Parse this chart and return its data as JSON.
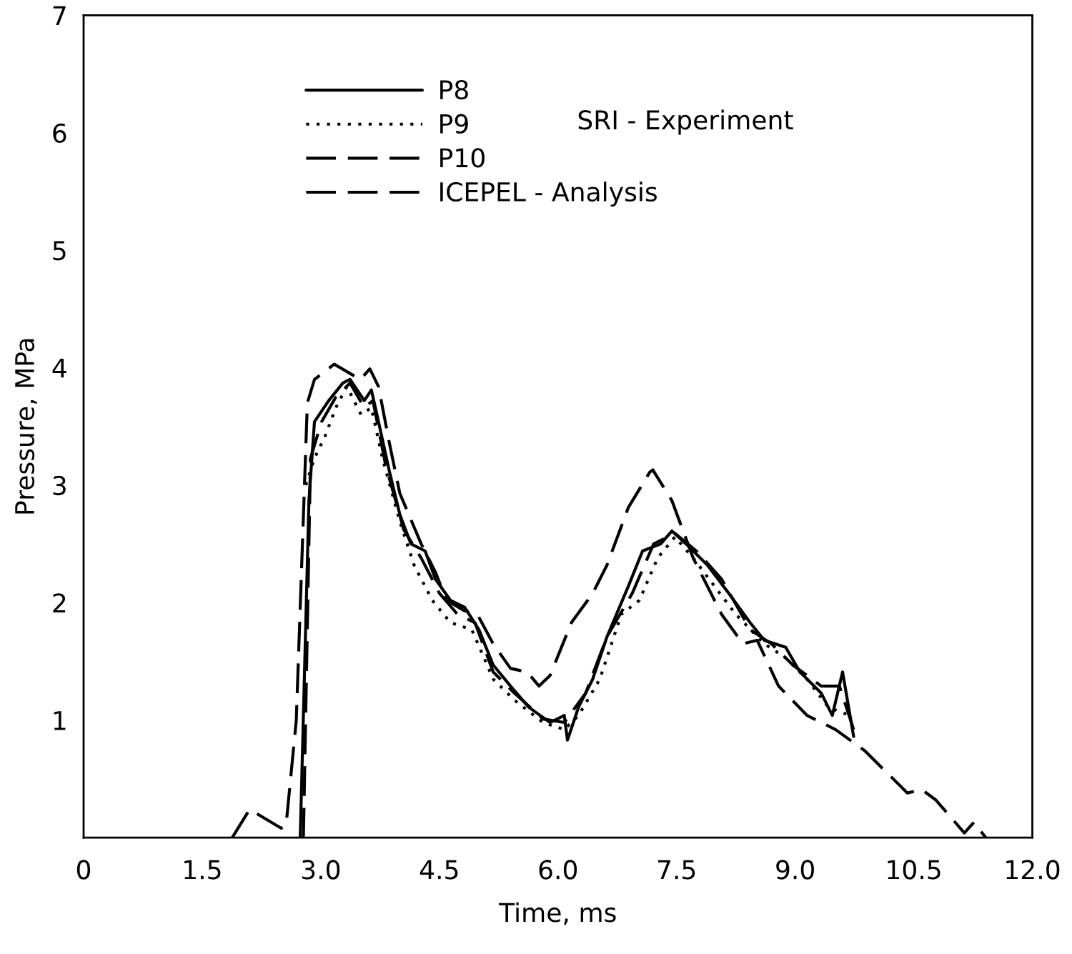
{
  "chart_data": {
    "type": "line",
    "xlabel": "Time, ms",
    "ylabel": "Pressure, MPa",
    "xlim": [
      0,
      12
    ],
    "ylim": [
      0,
      7
    ],
    "xticks": [
      {
        "value": 0,
        "label": "0"
      },
      1.5,
      {
        "value": 3,
        "label": "3.0"
      },
      4.5,
      {
        "value": 6,
        "label": "6.0"
      },
      7.5,
      {
        "value": 9,
        "label": "9.0"
      },
      10.5,
      {
        "value": 12,
        "label": "12.0"
      }
    ],
    "yticks": [
      1,
      2,
      3,
      4,
      5,
      6,
      7
    ],
    "grid": false,
    "legend": "top",
    "annotations": [
      "SRI - Experiment"
    ],
    "series": [
      {
        "name": "P8",
        "color": "#000000",
        "line_style": "solid",
        "x": [
          2.74,
          2.85,
          2.92,
          3.1,
          3.28,
          3.37,
          3.55,
          3.64,
          3.73,
          3.87,
          4.0,
          4.14,
          4.32,
          4.45,
          4.64,
          4.82,
          5.0,
          5.18,
          5.4,
          5.63,
          5.9,
          6.08,
          6.12,
          6.26,
          6.44,
          6.62,
          6.89,
          7.07,
          7.3,
          7.44,
          7.62,
          7.89,
          8.16,
          8.43,
          8.61,
          8.88,
          9.06,
          9.33,
          9.47,
          9.6,
          9.74
        ],
        "values": [
          0,
          2.87,
          3.54,
          3.72,
          3.87,
          3.9,
          3.72,
          3.81,
          3.54,
          3.11,
          2.75,
          2.5,
          2.44,
          2.2,
          2.02,
          1.96,
          1.77,
          1.47,
          1.29,
          1.11,
          0.98,
          1.04,
          0.83,
          1.11,
          1.35,
          1.71,
          2.14,
          2.44,
          2.5,
          2.61,
          2.5,
          2.32,
          2.08,
          1.83,
          1.68,
          1.62,
          1.41,
          1.23,
          1.04,
          1.41,
          0.86
        ]
      },
      {
        "name": "P9",
        "color": "#000000",
        "line_style": "dotted",
        "x": [
          2.81,
          2.92,
          3.05,
          3.19,
          3.33,
          3.51,
          3.64,
          3.78,
          4.0,
          4.18,
          4.41,
          4.64,
          4.91,
          5.18,
          5.45,
          5.81,
          6.08,
          6.26,
          6.53,
          6.8,
          7.03,
          7.26,
          7.48,
          7.71,
          7.98,
          8.25,
          8.61,
          8.88,
          9.15,
          9.42,
          9.69
        ],
        "values": [
          3.0,
          3.23,
          3.41,
          3.66,
          3.84,
          3.6,
          3.66,
          3.23,
          2.69,
          2.32,
          2.02,
          1.83,
          1.77,
          1.35,
          1.17,
          0.98,
          0.92,
          1.04,
          1.35,
          1.9,
          2.02,
          2.38,
          2.56,
          2.38,
          2.14,
          1.9,
          1.65,
          1.53,
          1.35,
          1.11,
          1.04
        ]
      },
      {
        "name": "P10",
        "color": "#000000",
        "line_style": "dashed",
        "x": [
          2.78,
          2.87,
          3.01,
          3.19,
          3.37,
          3.55,
          3.66,
          3.82,
          4.05,
          4.27,
          4.5,
          4.73,
          4.95,
          5.18,
          5.45,
          5.81,
          6.08,
          6.35,
          6.62,
          6.94,
          7.21,
          7.48,
          7.75,
          8.07,
          8.43,
          8.7,
          8.97,
          9.33,
          9.56,
          9.74
        ],
        "values": [
          0,
          3.23,
          3.54,
          3.75,
          3.87,
          3.66,
          3.72,
          3.17,
          2.62,
          2.38,
          2.08,
          1.9,
          1.83,
          1.41,
          1.23,
          1.01,
          0.98,
          1.23,
          1.71,
          2.08,
          2.5,
          2.59,
          2.44,
          2.2,
          1.77,
          1.65,
          1.47,
          1.29,
          1.29,
          0.92
        ]
      },
      {
        "name": "ICEPEL - Analysis",
        "color": "#000000",
        "line_style": "dashed",
        "x": [
          1.88,
          2.1,
          2.5,
          2.56,
          2.69,
          2.83,
          2.92,
          3.17,
          3.5,
          3.62,
          3.73,
          3.87,
          4.0,
          4.27,
          4.45,
          4.59,
          4.82,
          4.98,
          5.18,
          5.4,
          5.61,
          5.76,
          5.9,
          6.17,
          6.44,
          6.62,
          6.89,
          7.16,
          7.2,
          7.44,
          7.71,
          8.07,
          8.34,
          8.52,
          8.79,
          9.15,
          9.51,
          9.88,
          10.15,
          10.42,
          10.6,
          10.78,
          11.14,
          11.26,
          11.41
        ],
        "values": [
          0,
          0.24,
          0.08,
          0.1,
          1.0,
          3.7,
          3.9,
          4.03,
          3.9,
          3.99,
          3.84,
          3.35,
          2.93,
          2.5,
          2.26,
          2.02,
          1.93,
          1.9,
          1.65,
          1.44,
          1.41,
          1.29,
          1.38,
          1.83,
          2.08,
          2.32,
          2.81,
          3.11,
          3.13,
          2.87,
          2.38,
          1.9,
          1.65,
          1.68,
          1.29,
          1.04,
          0.92,
          0.74,
          0.56,
          0.38,
          0.41,
          0.32,
          0.04,
          0.13,
          0
        ]
      }
    ]
  }
}
